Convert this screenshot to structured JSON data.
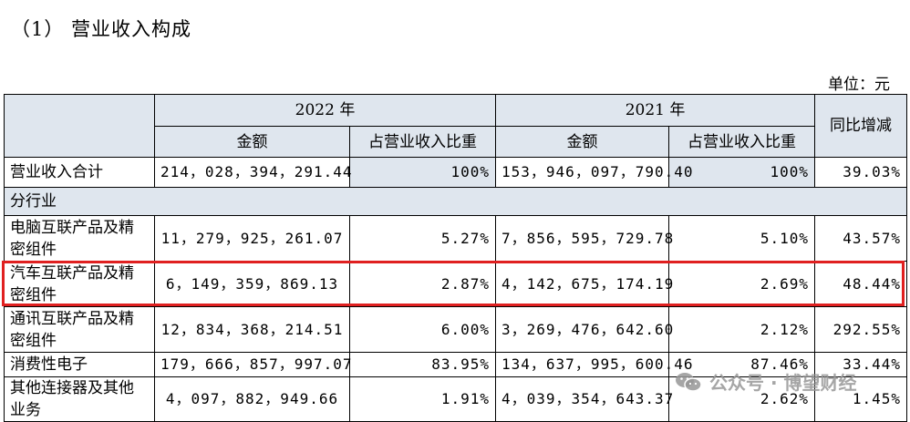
{
  "heading": "（1） 营业收入构成",
  "unit": "单位：元",
  "header": {
    "year2022": "2022 年",
    "year2021": "2021 年",
    "yoy": "同比增减",
    "amount_2022": "金额",
    "ratio_2022": "占营业收入比重",
    "amount_2021": "金额",
    "ratio_2021": "占营业收入比重"
  },
  "total": {
    "label": "营业收入合计",
    "amount_2022": "214，028，394，291.44",
    "ratio_2022": "100%",
    "amount_2021": "153，946，097，790.40",
    "ratio_2021": "100%",
    "yoy": "39.03%"
  },
  "section": "分行业",
  "rows": [
    {
      "label": "电脑互联产品及精密组件",
      "amount_2022": "11，279，925，261.07",
      "ratio_2022": "5.27%",
      "amount_2021": "7，856，595，729.78",
      "ratio_2021": "5.10%",
      "yoy": "43.57%"
    },
    {
      "label": "汽车互联产品及精密组件",
      "amount_2022": "6，149，359，869.13",
      "ratio_2022": "2.87%",
      "amount_2021": "4，142，675，174.19",
      "ratio_2021": "2.69%",
      "yoy": "48.44%"
    },
    {
      "label": "通讯互联产品及精密组件",
      "amount_2022": "12，834，368，214.51",
      "ratio_2022": "6.00%",
      "amount_2021": "3，269，476，642.60",
      "ratio_2021": "2.12%",
      "yoy": "292.55%"
    },
    {
      "label": "消费性电子",
      "amount_2022": "179，666，857，997.07",
      "ratio_2022": "83.95%",
      "amount_2021": "134，637，995，600.46",
      "ratio_2021": "87.46%",
      "yoy": "33.44%"
    },
    {
      "label": "其他连接器及其他业务",
      "amount_2022": "4，097，882，949.66",
      "ratio_2022": "1.91%",
      "amount_2021": "4，039，354，643.37",
      "ratio_2021": "2.62%",
      "yoy": "1.45%"
    }
  ],
  "watermark": "公众号 · 博望财经",
  "colors": {
    "header_fill": "#dfe6ee",
    "highlight_border": "#e02020"
  }
}
